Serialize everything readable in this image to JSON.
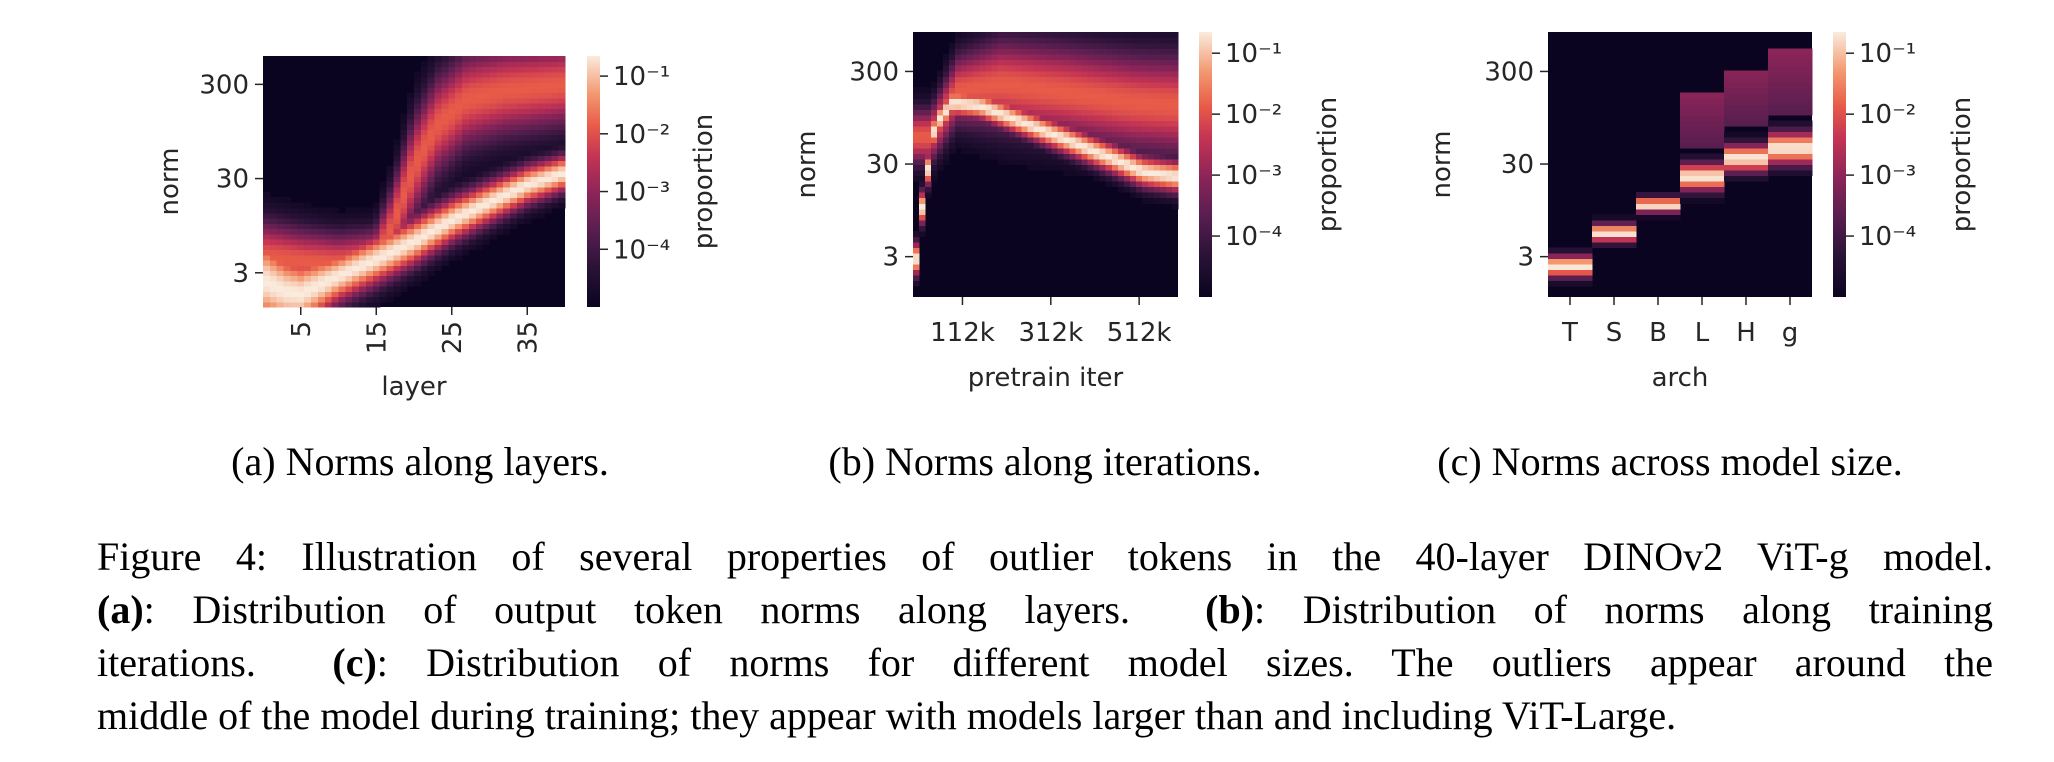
{
  "chart_data": [
    {
      "type": "heatmap",
      "panel": "a",
      "xlabel": "layer",
      "ylabel": "norm",
      "colorbar_label": "proportion",
      "x_ticks": [
        "5",
        "15",
        "25",
        "35"
      ],
      "x_tick_values": [
        5,
        15,
        25,
        35
      ],
      "x_tick_rotation": "vertical",
      "xlim": [
        0,
        40
      ],
      "y_ticks": [
        "300",
        "30",
        "3"
      ],
      "y_tick_values": [
        300,
        30,
        3
      ],
      "y_scale": "log",
      "ylim": [
        1.3,
        600
      ],
      "colorbar_ticks": [
        "10⁻¹",
        "10⁻²",
        "10⁻³",
        "10⁻⁴"
      ],
      "colorbar_scale": "log",
      "colormap": "rocket",
      "bands": [
        {
          "name": "",
          "center": [
            [
              0,
              2.5
            ],
            [
              3,
              1.9
            ],
            [
              5,
              1.8
            ],
            [
              10,
              2.8
            ],
            [
              15,
              4.2
            ],
            [
              20,
              6.5
            ],
            [
              25,
              11
            ],
            [
              30,
              17
            ],
            [
              35,
              26
            ],
            [
              40,
              35
            ]
          ],
          "width": [
            [
              0,
              0.55
            ],
            [
              10,
              0.3
            ],
            [
              40,
              0.2
            ]
          ]
        },
        {
          "name": "",
          "center": [
            [
              0,
              4.5
            ],
            [
              5,
              4.0
            ],
            [
              10,
              3.8
            ],
            [
              15,
              4.5
            ],
            [
              17,
              9
            ],
            [
              20,
              40
            ],
            [
              23,
              110
            ],
            [
              27,
              210
            ],
            [
              32,
              260
            ],
            [
              40,
              300
            ]
          ],
          "width": [
            [
              0,
              0.4
            ],
            [
              14,
              0.3
            ],
            [
              20,
              0.55
            ],
            [
              40,
              0.45
            ]
          ]
        }
      ]
    },
    {
      "type": "heatmap",
      "panel": "b",
      "xlabel": "pretrain iter",
      "ylabel": "norm",
      "colorbar_label": "proportion",
      "x_ticks": [
        "112k",
        "312k",
        "512k"
      ],
      "x_tick_values": [
        112,
        312,
        512
      ],
      "xlim": [
        0,
        600
      ],
      "y_ticks": [
        "300",
        "30",
        "3"
      ],
      "y_tick_values": [
        300,
        30,
        3
      ],
      "y_scale": "log",
      "ylim": [
        1.1,
        800
      ],
      "colorbar_ticks": [
        "10⁻¹",
        "10⁻²",
        "10⁻³",
        "10⁻⁴"
      ],
      "colorbar_scale": "log",
      "colormap": "rocket",
      "bands": [
        {
          "name": "",
          "center": [
            [
              0,
              1.5
            ],
            [
              20,
              10
            ],
            [
              50,
              80
            ],
            [
              90,
              140
            ],
            [
              150,
              130
            ],
            [
              250,
              85
            ],
            [
              350,
              55
            ],
            [
              450,
              35
            ],
            [
              520,
              25
            ],
            [
              600,
              22
            ]
          ],
          "width": [
            [
              0,
              0.18
            ],
            [
              100,
              0.15
            ],
            [
              600,
              0.18
            ]
          ]
        },
        {
          "name": "",
          "center": [
            [
              40,
              60
            ],
            [
              100,
              190
            ],
            [
              200,
              220
            ],
            [
              350,
              180
            ],
            [
              500,
              140
            ],
            [
              600,
              130
            ]
          ],
          "width": [
            [
              40,
              0.3
            ],
            [
              200,
              0.5
            ],
            [
              600,
              0.55
            ]
          ]
        }
      ]
    },
    {
      "type": "heatmap",
      "panel": "c",
      "xlabel": "arch",
      "ylabel": "norm",
      "colorbar_label": "proportion",
      "categories": [
        "T",
        "S",
        "B",
        "L",
        "H",
        "g"
      ],
      "y_ticks": [
        "300",
        "30",
        "3"
      ],
      "y_tick_values": [
        300,
        30,
        3
      ],
      "y_scale": "log",
      "ylim": [
        1.1,
        800
      ],
      "colorbar_ticks": [
        "10⁻¹",
        "10⁻²",
        "10⁻³",
        "10⁻⁴"
      ],
      "colorbar_scale": "log",
      "colormap": "rocket",
      "columns": [
        {
          "category": "T",
          "main_norm": 2.4,
          "main_spread": 0.12,
          "outlier_range": null
        },
        {
          "category": "S",
          "main_norm": 5.5,
          "main_spread": 0.1,
          "outlier_range": null
        },
        {
          "category": "B",
          "main_norm": 11,
          "main_spread": 0.08,
          "outlier_range": null
        },
        {
          "category": "L",
          "main_norm": 22,
          "main_spread": 0.15,
          "outlier_range": [
            45,
            180
          ]
        },
        {
          "category": "H",
          "main_norm": 35,
          "main_spread": 0.15,
          "outlier_range": [
            80,
            320
          ]
        },
        {
          "category": "g",
          "main_norm": 45,
          "main_spread": 0.18,
          "outlier_range": [
            100,
            500
          ]
        }
      ]
    }
  ],
  "subcaptions": {
    "a": "(a) Norms along layers.",
    "b": "(b) Norms along iterations.",
    "c": "(c) Norms across model size."
  },
  "caption": {
    "line1": "Figure 4: Illustration of several properties of outlier tokens in the 40-layer DINOv2 ViT-g model.",
    "a_label": "(a)",
    "a_text": ": Distribution of output token norms along layers.",
    "b_label": "(b)",
    "b_text": ": Distribution of norms along training",
    "line3_start": "iterations.",
    "c_label": "(c)",
    "c_text": ": Distribution of norms for different model sizes. The outliers appear around the",
    "line4": "middle of the model during training; they appear with models larger than and including ViT-Large."
  }
}
